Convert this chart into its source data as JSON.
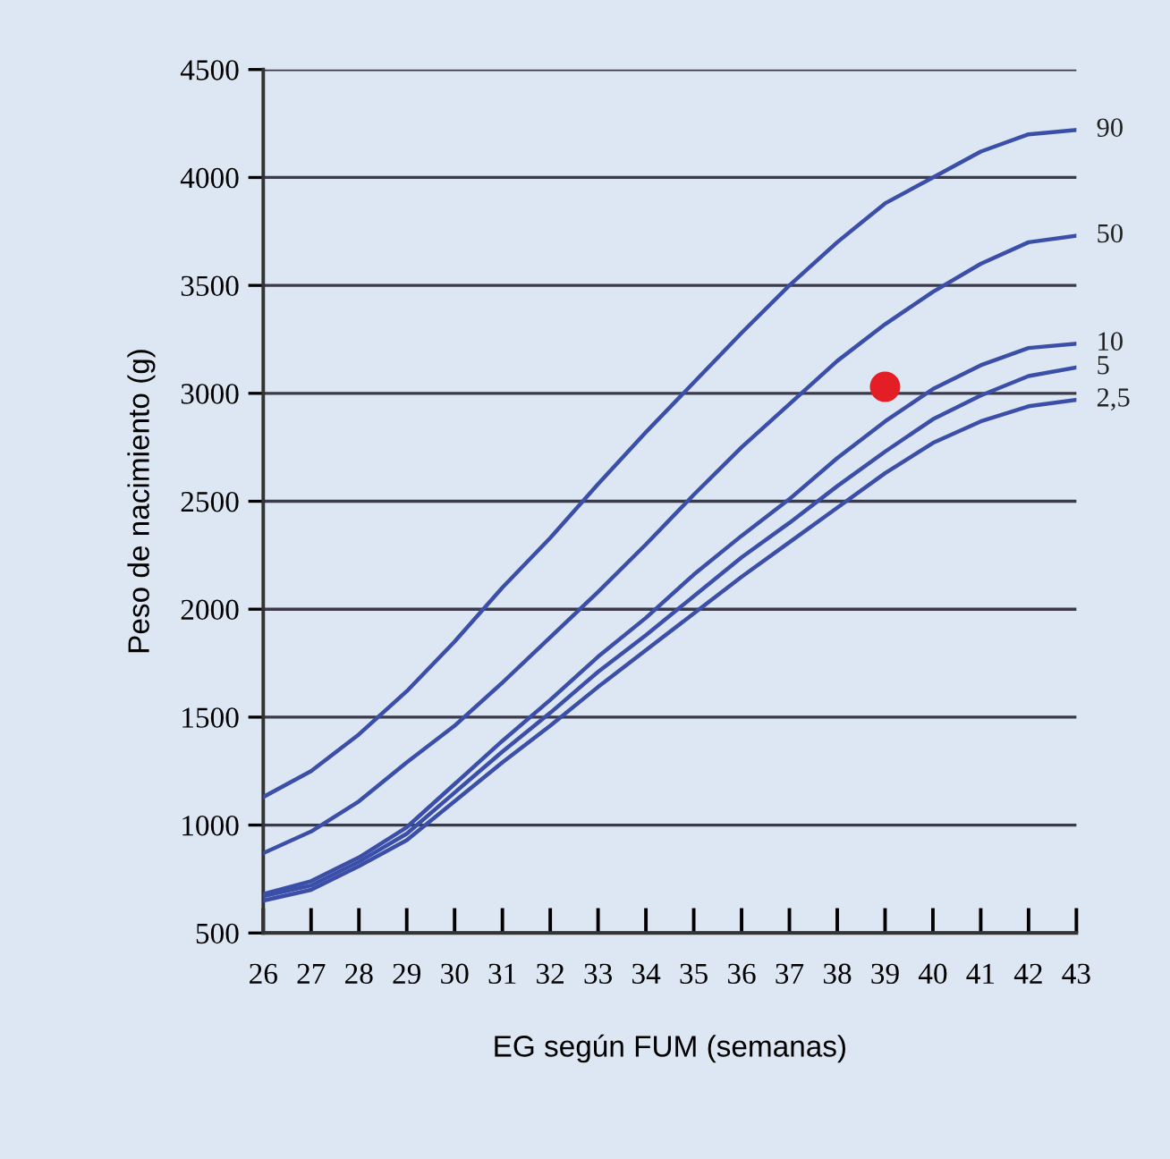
{
  "chart_data": {
    "type": "line",
    "xlabel": "EG según FUM (semanas)",
    "ylabel": "Peso de nacimiento (g)",
    "x": [
      26,
      27,
      28,
      29,
      30,
      31,
      32,
      33,
      34,
      35,
      36,
      37,
      38,
      39,
      40,
      41,
      42,
      43
    ],
    "series": [
      {
        "name": "90",
        "color": "#3b4fa8",
        "values": [
          1130,
          1250,
          1420,
          1620,
          1850,
          2100,
          2330,
          2580,
          2820,
          3050,
          3280,
          3500,
          3700,
          3880,
          4000,
          4120,
          4200,
          4220
        ]
      },
      {
        "name": "50",
        "color": "#3b4fa8",
        "values": [
          870,
          970,
          1110,
          1290,
          1460,
          1660,
          1870,
          2080,
          2300,
          2530,
          2750,
          2950,
          3150,
          3320,
          3470,
          3600,
          3700,
          3730
        ]
      },
      {
        "name": "10",
        "color": "#3b4fa8",
        "values": [
          680,
          740,
          850,
          990,
          1190,
          1390,
          1580,
          1780,
          1960,
          2160,
          2340,
          2510,
          2700,
          2870,
          3020,
          3130,
          3210,
          3230
        ]
      },
      {
        "name": "5",
        "color": "#3b4fa8",
        "values": [
          670,
          720,
          830,
          960,
          1150,
          1340,
          1520,
          1710,
          1880,
          2060,
          2240,
          2400,
          2570,
          2730,
          2880,
          2990,
          3080,
          3120
        ]
      },
      {
        "name": "2,5",
        "color": "#3b4fa8",
        "values": [
          650,
          700,
          810,
          930,
          1110,
          1290,
          1460,
          1640,
          1810,
          1980,
          2150,
          2310,
          2470,
          2630,
          2770,
          2870,
          2940,
          2970
        ]
      },
      {
        "type": "scatter",
        "color": "#e31e24",
        "marker": "circle",
        "x": [
          39
        ],
        "values": [
          3030
        ]
      }
    ],
    "xlim": [
      26,
      43
    ],
    "ylim": [
      500,
      4500
    ],
    "xticks": [
      26,
      27,
      28,
      29,
      30,
      31,
      32,
      33,
      34,
      35,
      36,
      37,
      38,
      39,
      40,
      41,
      42,
      43
    ],
    "yticks": [
      500,
      1000,
      1500,
      2000,
      2500,
      3000,
      3500,
      4000,
      4500
    ],
    "grid": "y",
    "legend": false,
    "marker": "none",
    "line_style": "solid"
  }
}
